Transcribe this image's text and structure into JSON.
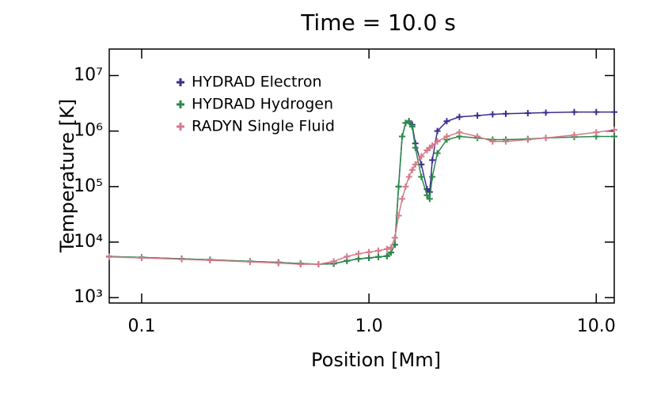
{
  "chart_data": {
    "type": "line",
    "title": "Time = 10.0 s",
    "x_label": "Position [Mm]",
    "y_label": "Temperature [K]",
    "xscale": "log",
    "yscale": "log",
    "xlim": [
      0.072,
      12
    ],
    "ylim": [
      800,
      30000000
    ],
    "xticks": [
      0.1,
      {
        "value": 1,
        "label": "1.0"
      },
      {
        "value": 10,
        "label": "10.0"
      }
    ],
    "yticks": [
      {
        "value": 1000,
        "label": "10³"
      },
      {
        "value": 10000,
        "label": "10⁴"
      },
      {
        "value": 100000,
        "label": "10⁵"
      },
      {
        "value": 1000000,
        "label": "10⁶"
      },
      {
        "value": 10000000,
        "label": "10⁷"
      }
    ],
    "legend": "upper left",
    "x": [
      0.072,
      0.1,
      0.15,
      0.2,
      0.3,
      0.4,
      0.5,
      0.6,
      0.7,
      0.8,
      0.9,
      1.0,
      1.1,
      1.2,
      1.25,
      1.3,
      1.35,
      1.4,
      1.45,
      1.5,
      1.55,
      1.6,
      1.7,
      1.8,
      1.85,
      1.9,
      2.0,
      2.2,
      2.5,
      3.0,
      3.5,
      4,
      5,
      6,
      8,
      10,
      12
    ],
    "series": [
      {
        "name": "HYDRAD Electron",
        "color": "#3a2e8c",
        "values": [
          5500,
          5300,
          5000,
          4800,
          4500,
          4300,
          4100,
          4000,
          4100,
          4600,
          5000,
          5200,
          5400,
          5600,
          6500,
          9000,
          100000,
          800000,
          1400000,
          1500000,
          1300000,
          600000,
          250000,
          90000,
          80000,
          300000,
          1000000,
          1500000,
          1800000,
          1900000,
          2000000,
          2050000,
          2100000,
          2150000,
          2200000,
          2200000,
          2200000
        ]
      },
      {
        "name": "HYDRAD Hydrogen",
        "color": "#2a8a47",
        "values": [
          5500,
          5300,
          5000,
          4800,
          4500,
          4300,
          4100,
          4000,
          4100,
          4600,
          5000,
          5200,
          5400,
          5600,
          6500,
          9000,
          100000,
          800000,
          1400000,
          1500000,
          1200000,
          500000,
          150000,
          70000,
          60000,
          150000,
          400000,
          700000,
          800000,
          750000,
          700000,
          700000,
          720000,
          750000,
          780000,
          800000,
          800000
        ]
      },
      {
        "name": "RADYN Single Fluid",
        "color": "#d67a8b",
        "values": [
          5400,
          5200,
          4900,
          4700,
          4400,
          4200,
          4000,
          4000,
          4500,
          5500,
          6200,
          6600,
          7000,
          7500,
          8000,
          12000,
          30000,
          60000,
          100000,
          150000,
          200000,
          250000,
          350000,
          450000,
          500000,
          550000,
          650000,
          800000,
          950000,
          800000,
          650000,
          650000,
          700000,
          750000,
          850000,
          950000,
          1050000
        ]
      }
    ]
  }
}
